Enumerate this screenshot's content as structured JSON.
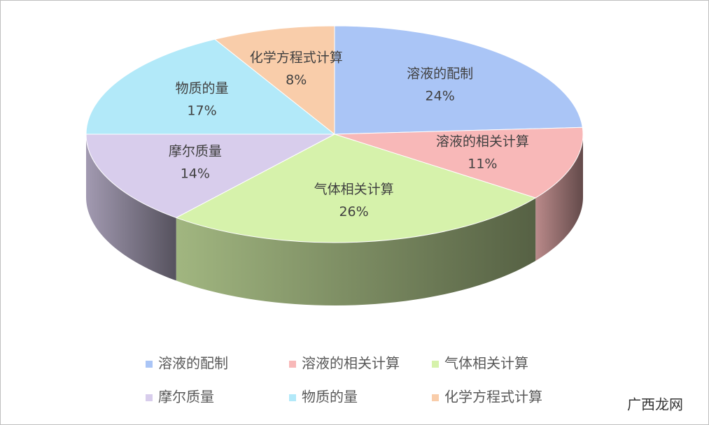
{
  "chart_data": {
    "type": "pie3d",
    "categories": [
      "溶液的配制",
      "溶液的相关计算",
      "气体相关计算",
      "摩尔质量",
      "物质的量",
      "化学方程式计算"
    ],
    "values": [
      24,
      11,
      26,
      14,
      17,
      8
    ],
    "value_labels": [
      "24%",
      "11%",
      "26%",
      "14%",
      "17%",
      "8%"
    ],
    "colors": [
      "#aac5f6",
      "#f8b8b8",
      "#d6f2ab",
      "#d8cdec",
      "#b2e9f9",
      "#f9cdaa"
    ]
  },
  "watermark": "广西龙网"
}
